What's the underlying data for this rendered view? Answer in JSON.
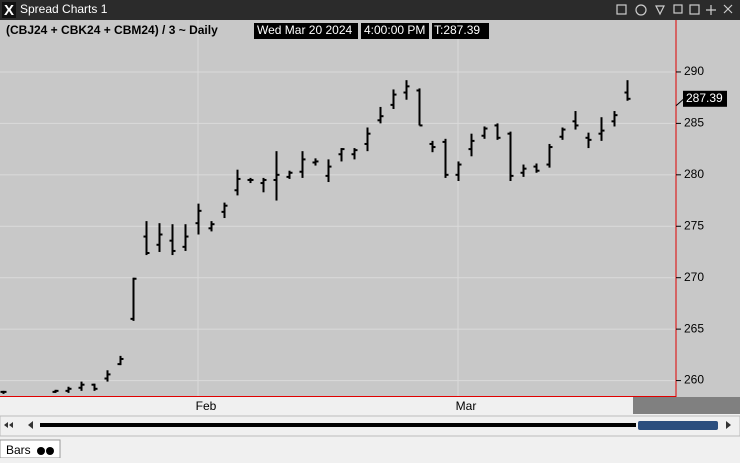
{
  "window": {
    "title": "Spread Charts 1"
  },
  "footer": {
    "tab": "Bars"
  },
  "chart_data": {
    "type": "ohlc",
    "title": "(CBJ24 + CBK24 + CBM24) / 3 ~ Daily",
    "date": "Wed Mar 20 2024",
    "time": "4:00:00 PM",
    "last": "T:287.39",
    "color": "#000000",
    "grid": true,
    "ylim": [
      258.5,
      295.05
    ],
    "yticks": [
      260,
      265,
      270,
      275,
      280,
      285,
      290
    ],
    "categories": [
      null,
      null,
      null,
      null,
      null,
      null,
      null,
      null,
      null,
      null,
      null,
      null,
      null,
      null,
      null,
      "Feb",
      null,
      null,
      null,
      null,
      null,
      null,
      null,
      null,
      null,
      null,
      null,
      null,
      null,
      null,
      null,
      null,
      null,
      null,
      null,
      "Mar",
      null,
      null,
      null,
      null,
      null,
      null,
      null,
      null,
      null,
      null,
      null,
      null,
      null
    ],
    "open": [
      258.9,
      null,
      null,
      null,
      258.9,
      259.0,
      259.3,
      259.6,
      260.2,
      261.6,
      266.0,
      274.0,
      273.2,
      273.6,
      273.0,
      275.3,
      274.8,
      276.4,
      278.5,
      279.5,
      279.2,
      279.5,
      279.8,
      280.3,
      281.2,
      279.9,
      282.0,
      282.0,
      283.0,
      285.3,
      286.8,
      288.0,
      288.2,
      283.0,
      283.2,
      280.0,
      282.5,
      283.8,
      284.8,
      284.0,
      280.2,
      280.8,
      281.0,
      283.7,
      285.2,
      283.6,
      284.0,
      285.2,
      288.0
    ],
    "high": [
      259.0,
      null,
      null,
      null,
      259.1,
      259.4,
      259.9,
      259.7,
      261.0,
      262.4,
      270.0,
      275.5,
      275.3,
      275.2,
      275.2,
      277.2,
      275.5,
      277.3,
      280.5,
      279.7,
      279.7,
      282.3,
      280.4,
      282.3,
      281.6,
      281.5,
      282.6,
      282.6,
      284.6,
      286.6,
      288.3,
      289.2,
      288.4,
      283.3,
      283.5,
      281.3,
      284.0,
      284.7,
      285.0,
      284.2,
      281.0,
      281.1,
      283.0,
      284.6,
      286.2,
      284.1,
      285.6,
      286.2,
      289.2
    ],
    "low": [
      258.7,
      null,
      null,
      null,
      258.8,
      258.8,
      259.0,
      259.0,
      259.9,
      261.5,
      265.8,
      272.2,
      272.5,
      272.2,
      272.6,
      274.2,
      274.5,
      275.8,
      278.0,
      279.2,
      278.3,
      277.5,
      279.6,
      279.7,
      280.9,
      279.3,
      281.3,
      281.5,
      282.3,
      285.0,
      286.4,
      287.3,
      284.8,
      282.2,
      279.7,
      279.4,
      281.8,
      283.5,
      283.4,
      279.4,
      279.8,
      280.2,
      280.7,
      283.4,
      284.4,
      282.6,
      283.3,
      284.7,
      287.2
    ],
    "close": [
      258.9,
      null,
      null,
      null,
      259.0,
      259.2,
      259.6,
      259.2,
      260.6,
      262.1,
      269.9,
      272.4,
      274.2,
      272.6,
      274.0,
      276.5,
      275.2,
      277.0,
      279.6,
      279.5,
      279.5,
      280.0,
      280.2,
      281.5,
      281.3,
      280.8,
      282.5,
      282.4,
      284.0,
      285.7,
      287.8,
      288.6,
      284.8,
      282.7,
      280.0,
      281.0,
      283.3,
      284.5,
      283.6,
      279.9,
      280.6,
      280.4,
      282.7,
      284.4,
      284.8,
      283.4,
      284.3,
      285.8,
      287.39
    ]
  }
}
